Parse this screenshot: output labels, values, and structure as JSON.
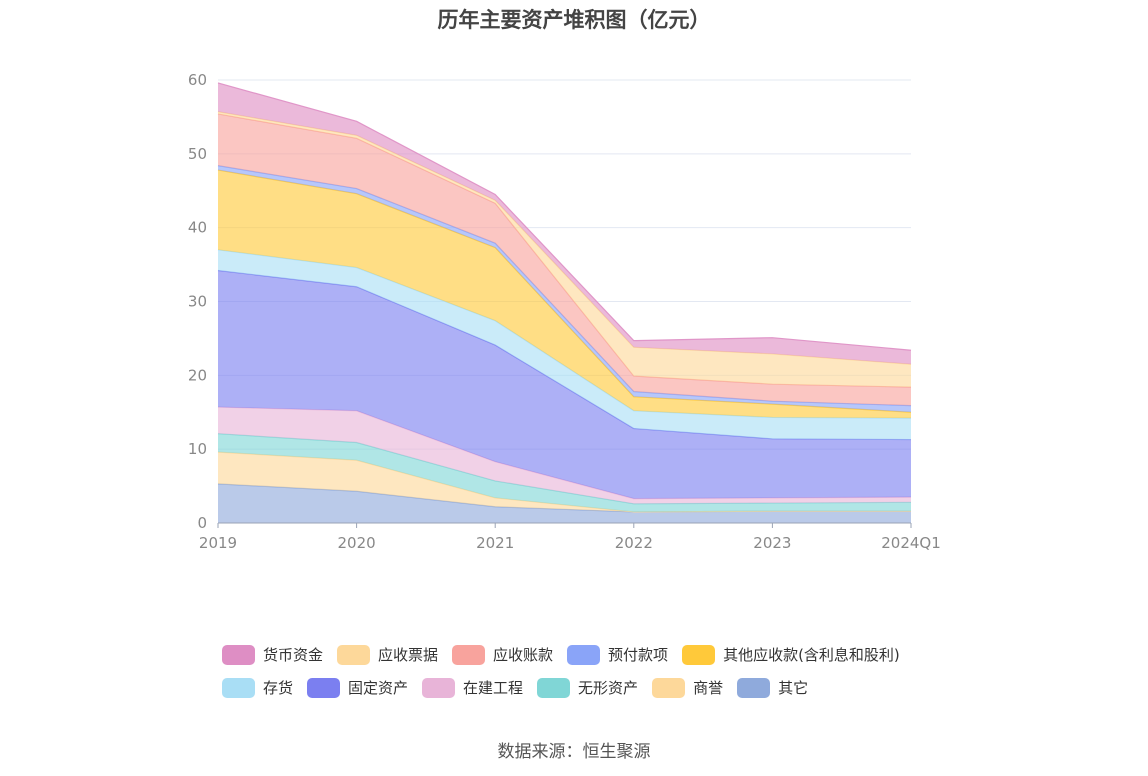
{
  "title": "历年主要资产堆积图（亿元）",
  "source": "数据来源：恒生聚源",
  "chart_data": {
    "type": "area",
    "stacked": true,
    "title": "历年主要资产堆积图（亿元）",
    "xlabel": "",
    "ylabel": "",
    "ylim": [
      0,
      60
    ],
    "yticks": [
      0,
      10,
      20,
      30,
      40,
      50,
      60
    ],
    "grid": true,
    "legend_position": "bottom",
    "categories": [
      "2019",
      "2020",
      "2021",
      "2022",
      "2023",
      "2024Q1"
    ],
    "series": [
      {
        "name": "其它",
        "color": "#8faadc",
        "values": [
          5.3,
          4.3,
          2.2,
          1.5,
          1.6,
          1.6
        ]
      },
      {
        "name": "商誉",
        "color": "#fdd89a",
        "values": [
          4.3,
          4.2,
          1.2,
          0.0,
          0.0,
          0.0
        ]
      },
      {
        "name": "无形资产",
        "color": "#80d6d6",
        "values": [
          2.5,
          2.4,
          2.3,
          1.1,
          1.1,
          1.2
        ]
      },
      {
        "name": "在建工程",
        "color": "#e8b4d8",
        "values": [
          3.6,
          4.3,
          2.6,
          0.7,
          0.7,
          0.7
        ]
      },
      {
        "name": "固定资产",
        "color": "#7b7ff0",
        "values": [
          18.5,
          16.8,
          15.8,
          9.5,
          8.0,
          7.8
        ]
      },
      {
        "name": "存货",
        "color": "#a9def5",
        "values": [
          2.8,
          2.6,
          3.3,
          2.4,
          2.9,
          2.9
        ]
      },
      {
        "name": "其他应收款(含利息和股利)",
        "color": "#ffc93a",
        "values": [
          10.8,
          10.0,
          9.9,
          1.9,
          1.8,
          0.8
        ]
      },
      {
        "name": "预付款项",
        "color": "#8aa4f8",
        "values": [
          0.6,
          0.7,
          0.6,
          0.7,
          0.4,
          0.9
        ]
      },
      {
        "name": "应收账款",
        "color": "#f8a39d",
        "values": [
          7.0,
          6.8,
          5.4,
          2.1,
          2.3,
          2.5
        ]
      },
      {
        "name": "应收票据",
        "color": "#fdd89a",
        "values": [
          0.3,
          0.4,
          0.4,
          3.9,
          4.1,
          3.1
        ]
      },
      {
        "name": "货币资金",
        "color": "#de8ec4",
        "values": [
          3.9,
          1.9,
          0.8,
          0.9,
          2.2,
          1.9
        ]
      }
    ]
  },
  "legend": [
    [
      {
        "name": "货币资金",
        "color": "#de8ec4"
      },
      {
        "name": "应收票据",
        "color": "#fdd89a"
      },
      {
        "name": "应收账款",
        "color": "#f8a39d"
      },
      {
        "name": "预付款项",
        "color": "#8aa4f8"
      },
      {
        "name": "其他应收款(含利息和股利)",
        "color": "#ffc93a"
      }
    ],
    [
      {
        "name": "存货",
        "color": "#a9def5"
      },
      {
        "name": "固定资产",
        "color": "#7b7ff0"
      },
      {
        "name": "在建工程",
        "color": "#e8b4d8"
      },
      {
        "name": "无形资产",
        "color": "#80d6d6"
      },
      {
        "name": "商誉",
        "color": "#fdd89a"
      },
      {
        "name": "其它",
        "color": "#8faadc"
      }
    ]
  ]
}
